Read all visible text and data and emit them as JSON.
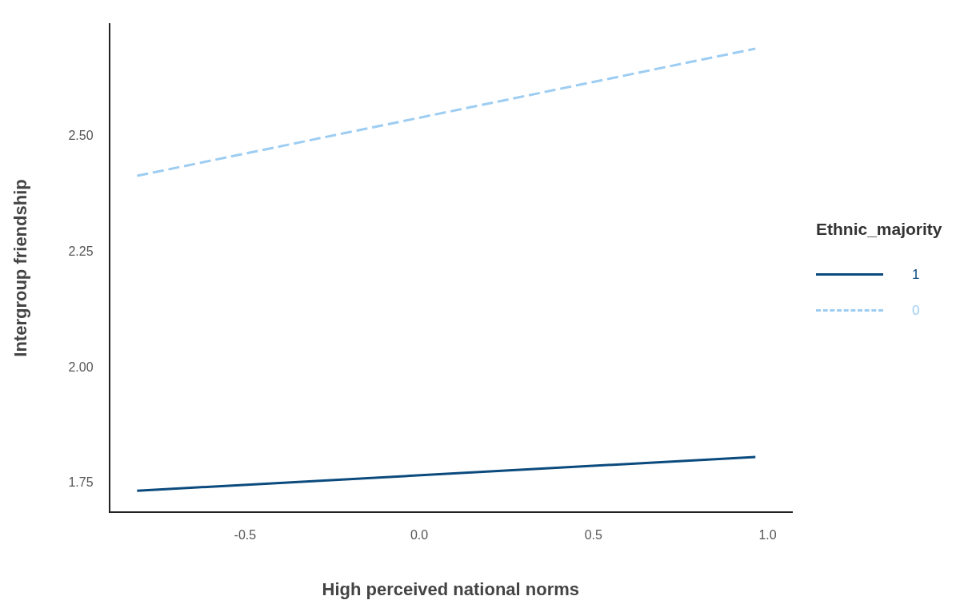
{
  "chart_data": {
    "type": "line",
    "xlabel": "High perceived national norms",
    "ylabel": "Intergroup friendship",
    "legend_title": "Ethnic_majority",
    "legend": "right",
    "grid": false,
    "marker": "none",
    "xlim": [
      -0.89,
      1.07
    ],
    "ylim": [
      1.687,
      2.744
    ],
    "xticks": [
      -0.5,
      {
        "value": 0,
        "label": "0.0"
      },
      0.5,
      {
        "value": 1,
        "label": "1.0"
      }
    ],
    "yticks": [
      1.75,
      {
        "value": 2,
        "label": "2.00"
      },
      2.25,
      {
        "value": 2.5,
        "label": "2.50"
      }
    ],
    "x": [
      -0.81,
      0.965
    ],
    "series": [
      {
        "name": "1",
        "color": "#0b4a7d",
        "line_style": "solid",
        "values": [
          1.734,
          1.807
        ]
      },
      {
        "name": "0",
        "color": "#9dcdf2",
        "line_style": "dashed",
        "values": [
          2.415,
          2.69
        ]
      }
    ]
  }
}
